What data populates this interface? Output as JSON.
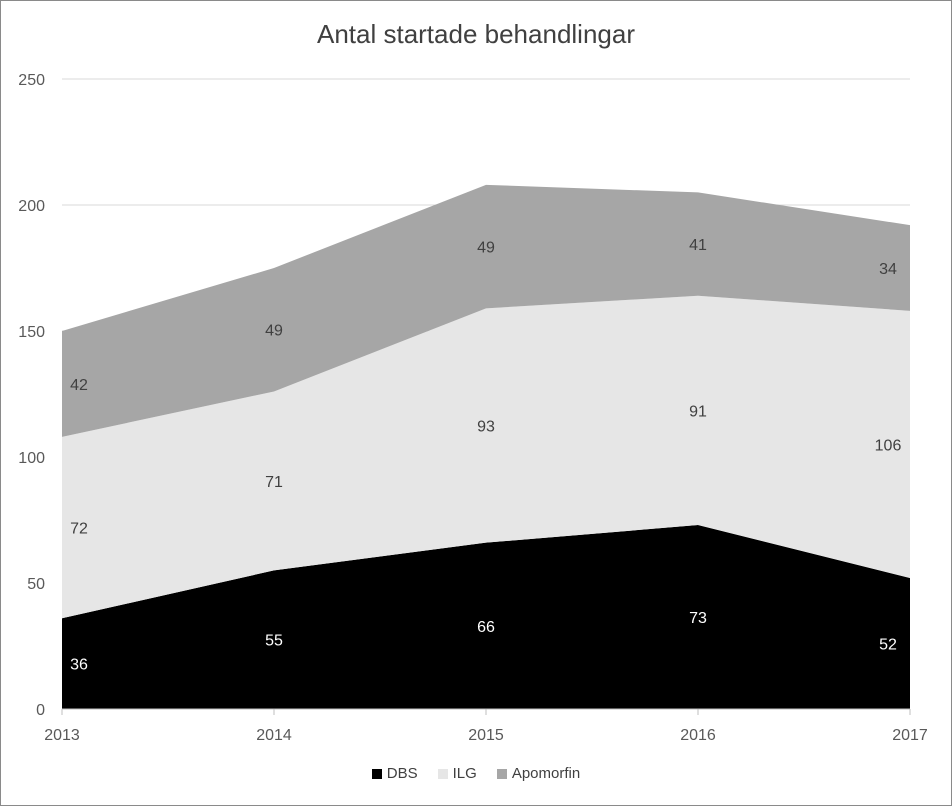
{
  "chart_data": {
    "type": "area",
    "stacked": true,
    "title": "Antal startade behandlingar",
    "x": [
      "2013",
      "2014",
      "2015",
      "2016",
      "2017"
    ],
    "series": [
      {
        "name": "DBS",
        "values": [
          36,
          55,
          66,
          73,
          52
        ],
        "color": "#000000",
        "label_color": "#ffffff"
      },
      {
        "name": "ILG",
        "values": [
          72,
          71,
          93,
          91,
          106
        ],
        "color": "#e6e6e6",
        "label_color": "#404040"
      },
      {
        "name": "Apomorfin",
        "values": [
          42,
          49,
          49,
          41,
          34
        ],
        "color": "#a6a6a6",
        "label_color": "#404040"
      }
    ],
    "ylim": [
      0,
      250
    ],
    "yticks": [
      0,
      50,
      100,
      150,
      200,
      250
    ],
    "grid": true,
    "legend_position": "bottom"
  }
}
